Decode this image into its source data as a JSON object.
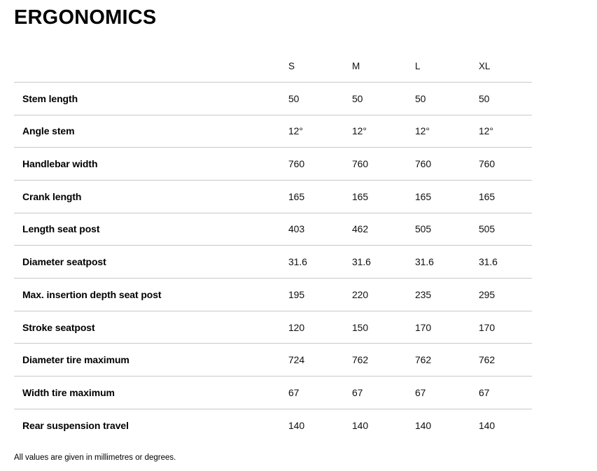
{
  "title": "ERGONOMICS",
  "table": {
    "columns": [
      "S",
      "M",
      "L",
      "XL"
    ],
    "rows": [
      {
        "label": "Stem length",
        "values": [
          "50",
          "50",
          "50",
          "50"
        ]
      },
      {
        "label": "Angle stem",
        "values": [
          "12°",
          "12°",
          "12°",
          "12°"
        ]
      },
      {
        "label": "Handlebar width",
        "values": [
          "760",
          "760",
          "760",
          "760"
        ]
      },
      {
        "label": "Crank length",
        "values": [
          "165",
          "165",
          "165",
          "165"
        ]
      },
      {
        "label": "Length seat post",
        "values": [
          "403",
          "462",
          "505",
          "505"
        ]
      },
      {
        "label": "Diameter seatpost",
        "values": [
          "31.6",
          "31.6",
          "31.6",
          "31.6"
        ]
      },
      {
        "label": "Max. insertion depth seat post",
        "values": [
          "195",
          "220",
          "235",
          "295"
        ]
      },
      {
        "label": "Stroke seatpost",
        "values": [
          "120",
          "150",
          "170",
          "170"
        ]
      },
      {
        "label": "Diameter tire maximum",
        "values": [
          "724",
          "762",
          "762",
          "762"
        ]
      },
      {
        "label": "Width tire maximum",
        "values": [
          "67",
          "67",
          "67",
          "67"
        ]
      },
      {
        "label": "Rear suspension travel",
        "values": [
          "140",
          "140",
          "140",
          "140"
        ]
      }
    ]
  },
  "footnote": "All values are given in millimetres or degrees.",
  "colors": {
    "border": "#c8c8c8",
    "text": "#000000",
    "background": "#ffffff"
  }
}
